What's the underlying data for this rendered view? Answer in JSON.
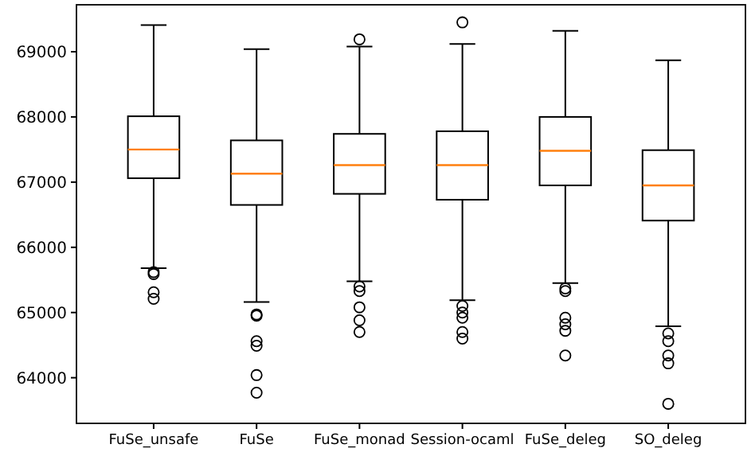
{
  "chart_data": {
    "type": "box",
    "categories": [
      "FuSe_unsafe",
      "FuSe",
      "FuSe_monad",
      "Session-ocaml",
      "FuSe_deleg",
      "SO_deleg"
    ],
    "boxes": [
      {
        "low": 65680,
        "q1": 67060,
        "median": 67500,
        "q3": 68010,
        "high": 69410,
        "outliers": [
          65620,
          65590,
          65310,
          65210
        ]
      },
      {
        "low": 65160,
        "q1": 66650,
        "median": 67130,
        "q3": 67640,
        "high": 69040,
        "outliers": [
          64970,
          64950,
          64560,
          64490,
          64040,
          63770
        ]
      },
      {
        "low": 65480,
        "q1": 66820,
        "median": 67260,
        "q3": 67740,
        "high": 69080,
        "outliers": [
          69190,
          65400,
          65330,
          65080,
          64880,
          64700
        ]
      },
      {
        "low": 65190,
        "q1": 66730,
        "median": 67260,
        "q3": 67780,
        "high": 69120,
        "outliers": [
          69450,
          65100,
          65000,
          64920,
          64700,
          64600
        ]
      },
      {
        "low": 65450,
        "q1": 66950,
        "median": 67480,
        "q3": 68000,
        "high": 69320,
        "outliers": [
          65370,
          65330,
          64920,
          64820,
          64720,
          64340
        ]
      },
      {
        "low": 64790,
        "q1": 66410,
        "median": 66950,
        "q3": 67490,
        "high": 68870,
        "outliers": [
          64680,
          64560,
          64340,
          64220,
          63600
        ]
      }
    ],
    "color": "#000000",
    "ylim": [
      63300,
      69720
    ],
    "yticks": [
      64000,
      65000,
      66000,
      67000,
      68000,
      69000
    ],
    "grid": false
  }
}
